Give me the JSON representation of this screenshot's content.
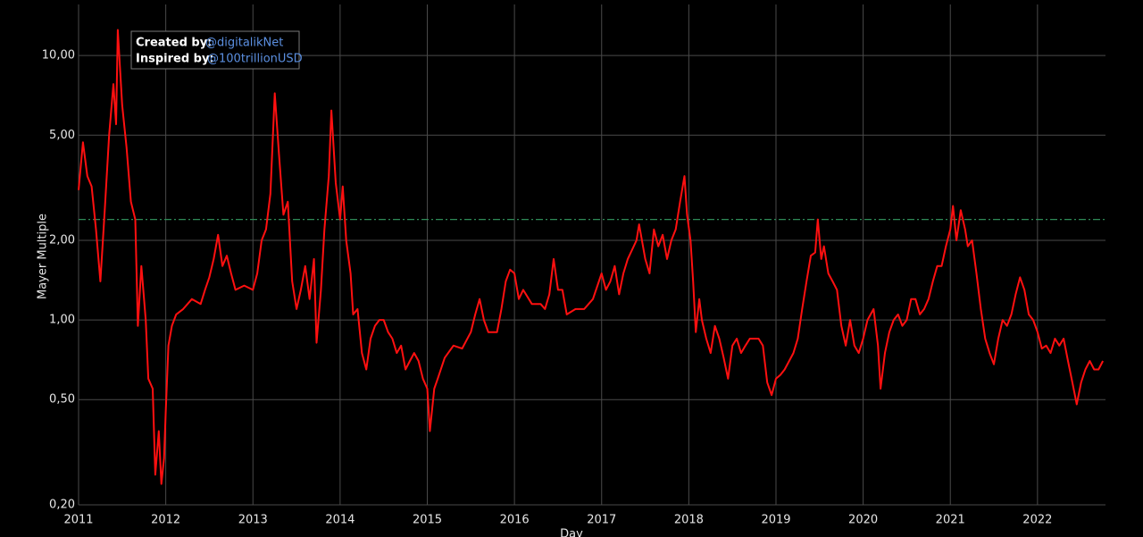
{
  "chart_data": {
    "type": "line",
    "x_label": "Day",
    "y_label": "Mayer Multiple",
    "annotation": {
      "created_label": "Created by:",
      "created_handle": "@digitalikNet",
      "inspired_label": "Inspired by:",
      "inspired_handle": "@100trillionUSD"
    },
    "color": "#ff1010",
    "threshold": 2.4,
    "threshold_color": "#2e8b57",
    "log_y": true,
    "grid": true,
    "xlim": [
      2011,
      2022.78
    ],
    "xticks": [
      2011,
      2012,
      2013,
      2014,
      2015,
      2016,
      2017,
      2018,
      2019,
      2020,
      2021,
      2022
    ],
    "ylim": [
      0.2,
      15.6
    ],
    "yticks": [
      {
        "value": 0.2,
        "label": "0,20"
      },
      {
        "value": 0.5,
        "label": "0,50"
      },
      {
        "value": 1,
        "label": "1,00"
      },
      {
        "value": 2,
        "label": "2,00"
      },
      {
        "value": 5,
        "label": "5,00"
      },
      {
        "value": 10,
        "label": "10,00"
      }
    ],
    "x": [
      2011.0,
      2011.05,
      2011.1,
      2011.15,
      2011.2,
      2011.25,
      2011.3,
      2011.35,
      2011.4,
      2011.43,
      2011.45,
      2011.5,
      2011.55,
      2011.6,
      2011.65,
      2011.68,
      2011.72,
      2011.77,
      2011.8,
      2011.85,
      2011.88,
      2011.92,
      2011.95,
      2011.98,
      2012.0,
      2012.03,
      2012.07,
      2012.12,
      2012.2,
      2012.3,
      2012.4,
      2012.45,
      2012.5,
      2012.55,
      2012.6,
      2012.65,
      2012.7,
      2012.75,
      2012.8,
      2012.9,
      2013.0,
      2013.05,
      2013.1,
      2013.15,
      2013.2,
      2013.25,
      2013.3,
      2013.35,
      2013.4,
      2013.45,
      2013.5,
      2013.55,
      2013.6,
      2013.65,
      2013.7,
      2013.73,
      2013.78,
      2013.82,
      2013.87,
      2013.9,
      2013.95,
      2014.0,
      2014.03,
      2014.07,
      2014.12,
      2014.15,
      2014.2,
      2014.25,
      2014.3,
      2014.35,
      2014.4,
      2014.45,
      2014.5,
      2014.55,
      2014.6,
      2014.65,
      2014.7,
      2014.75,
      2014.8,
      2014.85,
      2014.9,
      2014.95,
      2015.0,
      2015.03,
      2015.08,
      2015.12,
      2015.2,
      2015.3,
      2015.4,
      2015.5,
      2015.55,
      2015.6,
      2015.65,
      2015.7,
      2015.8,
      2015.85,
      2015.9,
      2015.95,
      2016.0,
      2016.05,
      2016.1,
      2016.2,
      2016.3,
      2016.35,
      2016.4,
      2016.45,
      2016.5,
      2016.55,
      2016.6,
      2016.7,
      2016.8,
      2016.9,
      2017.0,
      2017.05,
      2017.1,
      2017.15,
      2017.2,
      2017.25,
      2017.3,
      2017.4,
      2017.43,
      2017.5,
      2017.55,
      2017.6,
      2017.65,
      2017.7,
      2017.75,
      2017.8,
      2017.85,
      2017.9,
      2017.95,
      2017.98,
      2018.02,
      2018.05,
      2018.08,
      2018.12,
      2018.15,
      2018.2,
      2018.25,
      2018.3,
      2018.35,
      2018.4,
      2018.45,
      2018.5,
      2018.55,
      2018.6,
      2018.65,
      2018.7,
      2018.8,
      2018.85,
      2018.9,
      2018.95,
      2019.0,
      2019.05,
      2019.1,
      2019.2,
      2019.25,
      2019.3,
      2019.35,
      2019.4,
      2019.45,
      2019.48,
      2019.52,
      2019.55,
      2019.6,
      2019.65,
      2019.7,
      2019.75,
      2019.8,
      2019.85,
      2019.9,
      2019.95,
      2020.0,
      2020.05,
      2020.12,
      2020.17,
      2020.2,
      2020.25,
      2020.3,
      2020.35,
      2020.4,
      2020.45,
      2020.5,
      2020.55,
      2020.6,
      2020.65,
      2020.7,
      2020.75,
      2020.8,
      2020.85,
      2020.9,
      2020.95,
      2021.0,
      2021.03,
      2021.07,
      2021.12,
      2021.17,
      2021.2,
      2021.25,
      2021.3,
      2021.35,
      2021.4,
      2021.45,
      2021.5,
      2021.55,
      2021.6,
      2021.65,
      2021.7,
      2021.75,
      2021.8,
      2021.85,
      2021.9,
      2021.95,
      2022.0,
      2022.05,
      2022.1,
      2022.15,
      2022.2,
      2022.25,
      2022.3,
      2022.35,
      2022.4,
      2022.45,
      2022.5,
      2022.55,
      2022.6,
      2022.65,
      2022.7,
      2022.75
    ],
    "values": [
      3.1,
      4.7,
      3.5,
      3.2,
      2.2,
      1.4,
      2.6,
      5.0,
      7.8,
      5.5,
      12.5,
      6.5,
      4.5,
      2.8,
      2.4,
      0.95,
      1.6,
      1.0,
      0.6,
      0.55,
      0.26,
      0.38,
      0.24,
      0.3,
      0.45,
      0.8,
      0.95,
      1.05,
      1.1,
      1.2,
      1.15,
      1.3,
      1.45,
      1.7,
      2.1,
      1.6,
      1.75,
      1.5,
      1.3,
      1.35,
      1.3,
      1.5,
      2.0,
      2.2,
      3.0,
      7.2,
      4.2,
      2.5,
      2.8,
      1.4,
      1.1,
      1.3,
      1.6,
      1.2,
      1.7,
      0.82,
      1.3,
      2.2,
      3.5,
      6.2,
      3.3,
      2.4,
      3.2,
      2.0,
      1.5,
      1.05,
      1.1,
      0.75,
      0.65,
      0.85,
      0.95,
      1.0,
      1.0,
      0.9,
      0.85,
      0.75,
      0.8,
      0.65,
      0.7,
      0.75,
      0.7,
      0.6,
      0.55,
      0.38,
      0.55,
      0.6,
      0.72,
      0.8,
      0.78,
      0.9,
      1.05,
      1.2,
      1.0,
      0.9,
      0.9,
      1.1,
      1.4,
      1.55,
      1.5,
      1.2,
      1.3,
      1.15,
      1.15,
      1.1,
      1.25,
      1.7,
      1.3,
      1.3,
      1.05,
      1.1,
      1.1,
      1.2,
      1.5,
      1.3,
      1.4,
      1.6,
      1.25,
      1.5,
      1.7,
      2.0,
      2.3,
      1.7,
      1.5,
      2.2,
      1.9,
      2.1,
      1.7,
      2.0,
      2.2,
      2.8,
      3.5,
      2.5,
      2.0,
      1.4,
      0.9,
      1.2,
      1.0,
      0.85,
      0.75,
      0.95,
      0.85,
      0.72,
      0.6,
      0.8,
      0.85,
      0.75,
      0.8,
      0.85,
      0.85,
      0.8,
      0.58,
      0.52,
      0.6,
      0.62,
      0.65,
      0.75,
      0.85,
      1.1,
      1.4,
      1.75,
      1.8,
      2.4,
      1.7,
      1.9,
      1.5,
      1.4,
      1.3,
      0.95,
      0.8,
      1.0,
      0.8,
      0.75,
      0.85,
      1.0,
      1.1,
      0.8,
      0.55,
      0.75,
      0.9,
      1.0,
      1.05,
      0.95,
      1.0,
      1.2,
      1.2,
      1.05,
      1.1,
      1.2,
      1.4,
      1.6,
      1.6,
      1.9,
      2.2,
      2.7,
      2.0,
      2.6,
      2.2,
      1.9,
      2.0,
      1.5,
      1.1,
      0.85,
      0.75,
      0.68,
      0.85,
      1.0,
      0.95,
      1.05,
      1.25,
      1.45,
      1.3,
      1.05,
      1.0,
      0.9,
      0.78,
      0.8,
      0.75,
      0.85,
      0.8,
      0.85,
      0.7,
      0.58,
      0.48,
      0.58,
      0.65,
      0.7,
      0.65,
      0.65,
      0.7
    ]
  }
}
